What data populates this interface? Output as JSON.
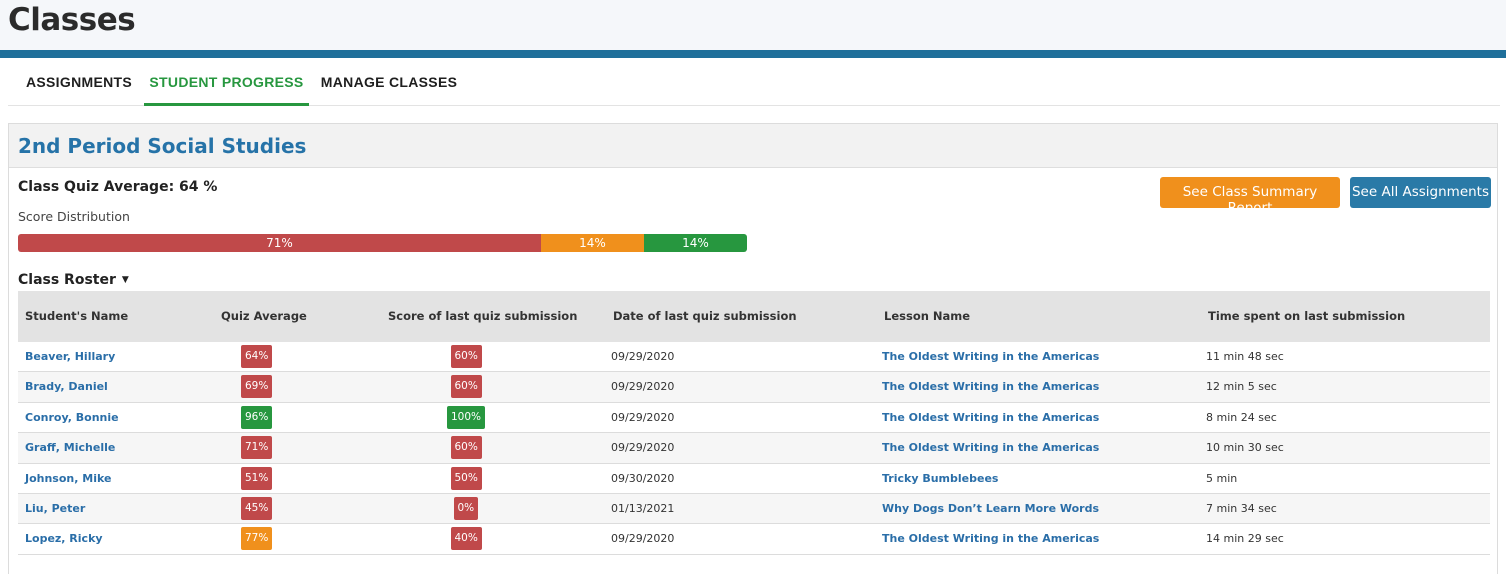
{
  "page": {
    "title": "Classes"
  },
  "tabs": [
    {
      "label": "ASSIGNMENTS",
      "active": false
    },
    {
      "label": "STUDENT PROGRESS",
      "active": true
    },
    {
      "label": "MANAGE CLASSES",
      "active": false
    }
  ],
  "class": {
    "name": "2nd Period Social Studies",
    "quiz_average_label": "Class Quiz Average: 64 %",
    "score_distribution_label": "Score Distribution",
    "distribution": [
      {
        "label": "71%",
        "percent": 71,
        "color": "red"
      },
      {
        "label": "14%",
        "percent": 14,
        "color": "orange"
      },
      {
        "label": "14%",
        "percent": 14,
        "color": "green"
      }
    ],
    "buttons": {
      "summary_report": "See Class Summary Report",
      "all_assignments": "See All Assignments"
    }
  },
  "roster": {
    "title": "Class Roster",
    "columns": [
      "Student's Name",
      "Quiz Average",
      "Score of last quiz submission",
      "Date of last quiz submission",
      "Lesson Name",
      "Time spent on last submission"
    ],
    "rows": [
      {
        "name": "Beaver, Hillary",
        "quiz_average": "64%",
        "avg_color": "red",
        "last_score": "60%",
        "score_color": "red",
        "date": "09/29/2020",
        "lesson": "The Oldest Writing in the Americas",
        "time": "11 min 48 sec"
      },
      {
        "name": "Brady, Daniel",
        "quiz_average": "69%",
        "avg_color": "red",
        "last_score": "60%",
        "score_color": "red",
        "date": "09/29/2020",
        "lesson": "The Oldest Writing in the Americas",
        "time": "12 min 5 sec"
      },
      {
        "name": "Conroy, Bonnie",
        "quiz_average": "96%",
        "avg_color": "green",
        "last_score": "100%",
        "score_color": "green",
        "date": "09/29/2020",
        "lesson": "The Oldest Writing in the Americas",
        "time": "8 min 24 sec"
      },
      {
        "name": "Graff, Michelle",
        "quiz_average": "71%",
        "avg_color": "red",
        "last_score": "60%",
        "score_color": "red",
        "date": "09/29/2020",
        "lesson": "The Oldest Writing in the Americas",
        "time": "10 min 30 sec"
      },
      {
        "name": "Johnson, Mike",
        "quiz_average": "51%",
        "avg_color": "red",
        "last_score": "50%",
        "score_color": "red",
        "date": "09/30/2020",
        "lesson": "Tricky Bumblebees",
        "time": "5 min"
      },
      {
        "name": "Liu, Peter",
        "quiz_average": "45%",
        "avg_color": "red",
        "last_score": "0%",
        "score_color": "red",
        "date": "01/13/2021",
        "lesson": "Why Dogs Don’t Learn More Words",
        "time": "7 min 34 sec"
      },
      {
        "name": "Lopez, Ricky",
        "quiz_average": "77%",
        "avg_color": "orange",
        "last_score": "40%",
        "score_color": "red",
        "date": "09/29/2020",
        "lesson": "The Oldest Writing in the Americas",
        "time": "14 min 29 sec"
      }
    ]
  },
  "colors": {
    "red": "#c0494a",
    "orange": "#f0901c",
    "green": "#27973f",
    "accent_blue": "#1f6f9a",
    "link_blue": "#2a6ea8"
  }
}
